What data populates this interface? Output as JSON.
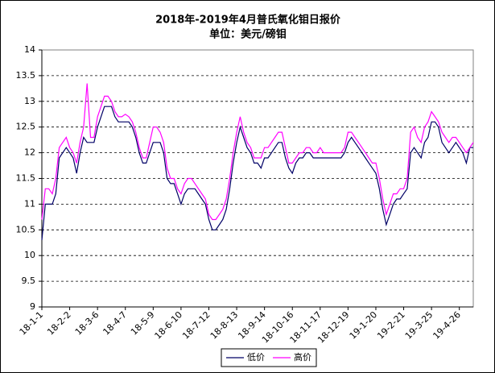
{
  "chart_data": {
    "type": "line",
    "title": "2018年-2019年4月普氏氧化钼日报价",
    "subtitle": "单位：美元/磅钼",
    "categories": [
      "18-1-1",
      null,
      null,
      null,
      null,
      null,
      null,
      null,
      "18-2-2",
      null,
      null,
      null,
      null,
      null,
      null,
      null,
      "18-3-6",
      null,
      null,
      null,
      null,
      null,
      null,
      null,
      "18-4-7",
      null,
      null,
      null,
      null,
      null,
      null,
      null,
      "18-5-9",
      null,
      null,
      null,
      null,
      null,
      null,
      null,
      "18-6-10",
      null,
      null,
      null,
      null,
      null,
      null,
      null,
      "18-7-12",
      null,
      null,
      null,
      null,
      null,
      null,
      null,
      "18-8-13",
      null,
      null,
      null,
      null,
      null,
      null,
      null,
      "18-9-14",
      null,
      null,
      null,
      null,
      null,
      null,
      null,
      "18-10-16",
      null,
      null,
      null,
      null,
      null,
      null,
      null,
      "18-11-17",
      null,
      null,
      null,
      null,
      null,
      null,
      null,
      "18-12-19",
      null,
      null,
      null,
      null,
      null,
      null,
      null,
      "19-1-20",
      null,
      null,
      null,
      null,
      null,
      null,
      null,
      "19-2-21",
      null,
      null,
      null,
      null,
      null,
      null,
      null,
      "19-3-25",
      null,
      null,
      null,
      null,
      null,
      null,
      null,
      "19-4-26",
      null,
      null,
      null,
      null
    ],
    "series": [
      {
        "name": "低价",
        "color": "#000066",
        "values": [
          10.3,
          11.0,
          11.0,
          11.0,
          11.2,
          11.9,
          12.0,
          12.1,
          12.0,
          11.9,
          11.6,
          12.0,
          12.3,
          12.2,
          12.2,
          12.2,
          12.5,
          12.7,
          12.9,
          12.9,
          12.9,
          12.7,
          12.6,
          12.6,
          12.6,
          12.6,
          12.5,
          12.3,
          12.0,
          11.8,
          11.8,
          12.0,
          12.2,
          12.2,
          12.2,
          12.0,
          11.5,
          11.4,
          11.4,
          11.2,
          11.0,
          11.2,
          11.3,
          11.3,
          11.3,
          11.2,
          11.1,
          11.0,
          10.7,
          10.5,
          10.5,
          10.6,
          10.7,
          10.9,
          11.3,
          11.8,
          12.2,
          12.5,
          12.3,
          12.1,
          12.0,
          11.8,
          11.8,
          11.7,
          11.9,
          11.9,
          12.0,
          12.1,
          12.2,
          12.2,
          11.9,
          11.7,
          11.6,
          11.8,
          11.9,
          11.9,
          12.0,
          12.0,
          11.9,
          11.9,
          11.9,
          11.9,
          11.9,
          11.9,
          11.9,
          11.9,
          11.9,
          12.0,
          12.2,
          12.3,
          12.2,
          12.1,
          12.0,
          11.9,
          11.8,
          11.7,
          11.6,
          11.3,
          10.9,
          10.6,
          10.8,
          11.0,
          11.1,
          11.1,
          11.2,
          11.3,
          12.0,
          12.1,
          12.0,
          11.9,
          12.2,
          12.3,
          12.6,
          12.6,
          12.5,
          12.2,
          12.1,
          12.0,
          12.1,
          12.2,
          12.1,
          12.0,
          11.8,
          12.1,
          12.1
        ]
      },
      {
        "name": "高价",
        "color": "#ff00ff",
        "values": [
          10.7,
          11.3,
          11.3,
          11.2,
          11.5,
          12.1,
          12.2,
          12.3,
          12.1,
          12.0,
          11.8,
          12.2,
          12.5,
          13.35,
          12.3,
          12.3,
          12.7,
          12.9,
          13.1,
          13.1,
          13.0,
          12.8,
          12.7,
          12.7,
          12.75,
          12.7,
          12.6,
          12.4,
          12.1,
          11.9,
          11.9,
          12.2,
          12.5,
          12.5,
          12.4,
          12.2,
          11.7,
          11.5,
          11.5,
          11.3,
          11.2,
          11.4,
          11.5,
          11.5,
          11.4,
          11.3,
          11.2,
          11.1,
          10.8,
          10.7,
          10.7,
          10.8,
          10.9,
          11.1,
          11.5,
          12.0,
          12.4,
          12.7,
          12.4,
          12.2,
          12.1,
          11.9,
          11.9,
          11.9,
          12.1,
          12.1,
          12.2,
          12.3,
          12.4,
          12.4,
          12.1,
          11.8,
          11.8,
          11.9,
          12.0,
          12.0,
          12.1,
          12.1,
          12.0,
          12.0,
          12.1,
          12.0,
          12.0,
          12.0,
          12.0,
          12.0,
          12.0,
          12.1,
          12.4,
          12.4,
          12.3,
          12.2,
          12.1,
          12.0,
          11.9,
          11.8,
          11.8,
          11.5,
          11.1,
          10.8,
          11.0,
          11.2,
          11.2,
          11.3,
          11.3,
          11.5,
          12.4,
          12.5,
          12.3,
          12.2,
          12.5,
          12.6,
          12.8,
          12.7,
          12.6,
          12.4,
          12.3,
          12.2,
          12.3,
          12.3,
          12.2,
          12.1,
          12.0,
          12.1,
          12.2
        ]
      }
    ],
    "ylim": [
      9,
      14
    ],
    "yticks": [
      9,
      9.5,
      10,
      10.5,
      11,
      11.5,
      12,
      12.5,
      13,
      13.5,
      14
    ],
    "grid": true,
    "legend": "bottom"
  }
}
